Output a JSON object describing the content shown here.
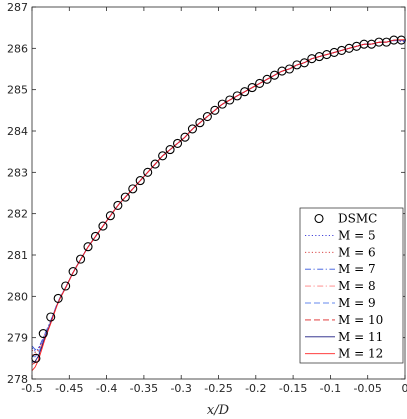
{
  "chart_data": {
    "type": "line",
    "title": "",
    "xlabel": "x/D",
    "ylabel": "",
    "xlim": [
      -0.5,
      0
    ],
    "ylim": [
      278,
      287
    ],
    "xticks": [
      -0.5,
      -0.45,
      -0.4,
      -0.35,
      -0.3,
      -0.25,
      -0.2,
      -0.15,
      -0.1,
      -0.05,
      0
    ],
    "xtick_labels": [
      "-0.5",
      "-0.45",
      "-0.4",
      "-0.35",
      "-0.3",
      "-0.25",
      "-0.2",
      "-0.15",
      "-0.1",
      "-0.05",
      "0"
    ],
    "yticks": [
      278,
      279,
      280,
      281,
      282,
      283,
      284,
      285,
      286,
      287
    ],
    "ytick_labels": [
      "278",
      "279",
      "280",
      "281",
      "282",
      "283",
      "284",
      "285",
      "286",
      "287"
    ],
    "grid": false,
    "legend_position": "bottom-right",
    "dsmc": {
      "name": "DSMC",
      "marker": "circle",
      "x": [
        -0.4948,
        -0.4849,
        -0.4749,
        -0.4649,
        -0.4549,
        -0.4449,
        -0.4349,
        -0.4249,
        -0.4149,
        -0.4049,
        -0.3949,
        -0.3849,
        -0.3749,
        -0.3649,
        -0.3549,
        -0.3449,
        -0.3349,
        -0.3249,
        -0.3149,
        -0.3049,
        -0.2949,
        -0.2849,
        -0.2749,
        -0.2649,
        -0.2549,
        -0.2449,
        -0.2349,
        -0.2249,
        -0.2149,
        -0.2049,
        -0.1949,
        -0.1849,
        -0.1749,
        -0.1649,
        -0.1549,
        -0.1449,
        -0.1349,
        -0.1249,
        -0.1149,
        -0.1049,
        -0.0949,
        -0.0849,
        -0.0749,
        -0.0649,
        -0.0549,
        -0.0449,
        -0.0349,
        -0.0249,
        -0.0149,
        -0.0049
      ],
      "y": [
        278.5,
        279.1,
        279.5,
        279.95,
        280.25,
        280.6,
        280.9,
        281.2,
        281.45,
        281.7,
        281.95,
        282.2,
        282.4,
        282.6,
        282.8,
        283.0,
        283.2,
        283.4,
        283.55,
        283.7,
        283.85,
        284.05,
        284.2,
        284.35,
        284.5,
        284.65,
        284.75,
        284.85,
        284.95,
        285.05,
        285.15,
        285.25,
        285.35,
        285.45,
        285.5,
        285.6,
        285.65,
        285.75,
        285.8,
        285.85,
        285.9,
        285.95,
        286.0,
        286.05,
        286.1,
        286.1,
        286.15,
        286.15,
        286.2,
        286.2
      ]
    },
    "series": [
      {
        "name": "M = 5",
        "style": "dotted",
        "color": "#2b2bd4",
        "x0": 278.75,
        "endpoint": 286.16
      },
      {
        "name": "M = 6",
        "style": "dotted",
        "color": "#d42b2b",
        "x0": 278.7,
        "endpoint": 286.18
      },
      {
        "name": "M = 7",
        "style": "dashdot",
        "color": "#3355dd",
        "x0": 278.8,
        "endpoint": 286.17
      },
      {
        "name": "M = 8",
        "style": "dashdot",
        "color": "#ff8080",
        "x0": 278.6,
        "endpoint": 286.19
      },
      {
        "name": "M = 9",
        "style": "dashed",
        "color": "#6688ee",
        "x0": 278.55,
        "endpoint": 286.19
      },
      {
        "name": "M = 10",
        "style": "dashed",
        "color": "#dd2222",
        "x0": 278.35,
        "endpoint": 286.2
      },
      {
        "name": "M = 11",
        "style": "solid",
        "color": "#1a1a80",
        "x0": 278.4,
        "endpoint": 286.2
      },
      {
        "name": "M = 12",
        "style": "solid",
        "color": "#ff2222",
        "x0": 278.2,
        "endpoint": 286.21
      }
    ]
  }
}
